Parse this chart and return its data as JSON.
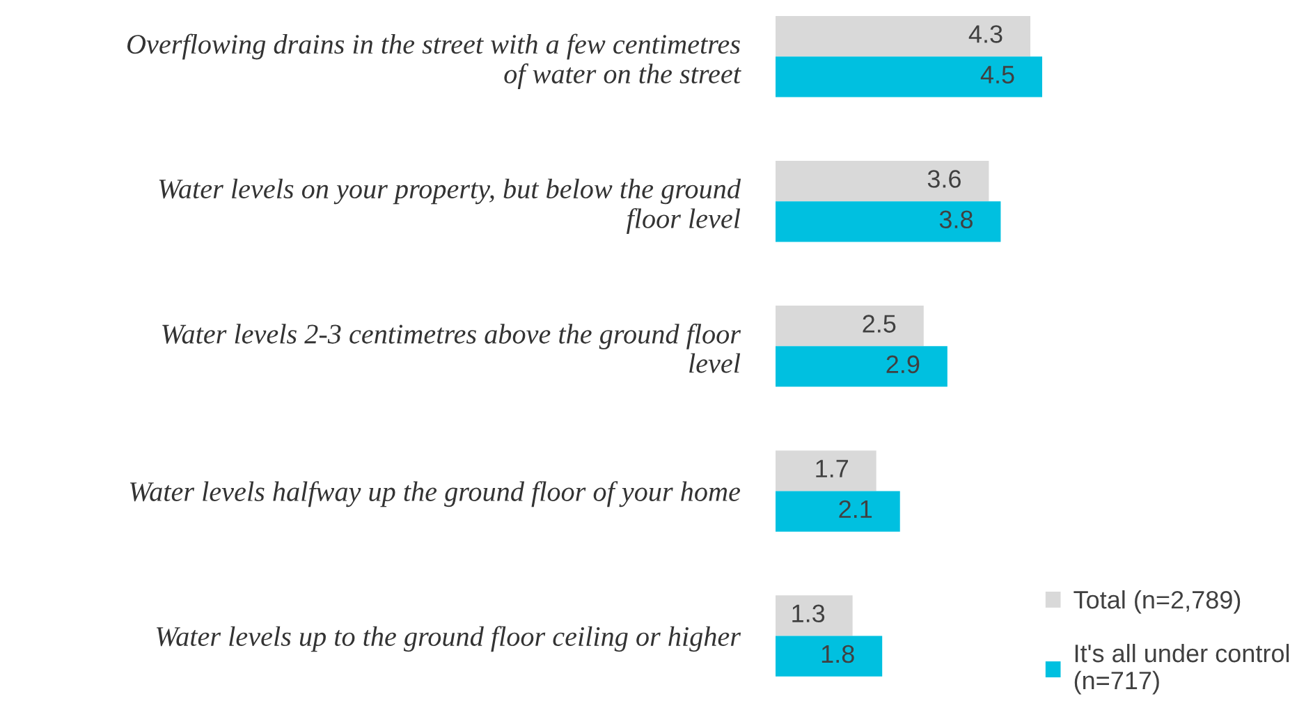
{
  "chart_data": {
    "type": "bar",
    "orientation": "horizontal",
    "categories": [
      "Overflowing drains in the street with a few centimetres\nof water on the street",
      "Water levels on your property, but below the ground\nfloor level",
      "Water levels 2-3 centimetres above the ground floor\nlevel",
      "Water levels halfway up the ground floor of your home",
      "Water levels up to the ground floor ceiling or higher"
    ],
    "series": [
      {
        "name": "Total (n=2,789)",
        "color": "#d9d9d9",
        "values": [
          4.3,
          3.6,
          2.5,
          1.7,
          1.3
        ]
      },
      {
        "name": "It's all under control\n(n=717)",
        "color": "#00c0e0",
        "values": [
          4.5,
          3.8,
          2.9,
          2.1,
          1.8
        ]
      }
    ],
    "data_labels": true,
    "tick_labels": "y",
    "legend": "bottom right",
    "grid": false
  }
}
